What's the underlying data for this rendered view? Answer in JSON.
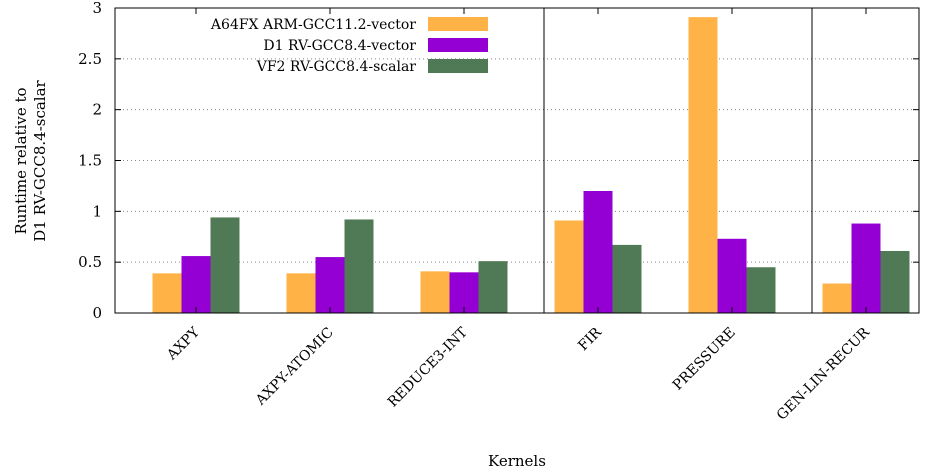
{
  "chart_data": {
    "type": "bar",
    "xlabel": "Kernels",
    "ylabel": [
      "Runtime relative to",
      "D1 RV-GCC8.4-scalar"
    ],
    "ylim": [
      0,
      3
    ],
    "yticks": [
      "0",
      "0.5",
      "1",
      "1.5",
      "2",
      "2.5",
      "3"
    ],
    "grid": "horizontal-dotted",
    "legend_position": "top-left-inside",
    "group_separators_after": [
      "REDUCE3-INT",
      "PRESSURE"
    ],
    "categories": [
      "AXPY",
      "AXPY-ATOMIC",
      "REDUCE3-INT",
      "FIR",
      "PRESSURE",
      "GEN-LIN-RECUR"
    ],
    "series": [
      {
        "name": "A64FX ARM-GCC11.2-vector",
        "color": "#ffb347",
        "values": [
          0.39,
          0.39,
          0.41,
          0.91,
          2.91,
          0.29
        ]
      },
      {
        "name": "D1 RV-GCC8.4-vector",
        "color": "#9400d3",
        "values": [
          0.56,
          0.55,
          0.4,
          1.2,
          0.73,
          0.88
        ]
      },
      {
        "name": "VF2 RV-GCC8.4-scalar",
        "color": "#507a55",
        "values": [
          0.94,
          0.92,
          0.51,
          0.67,
          0.45,
          0.61
        ]
      }
    ]
  }
}
